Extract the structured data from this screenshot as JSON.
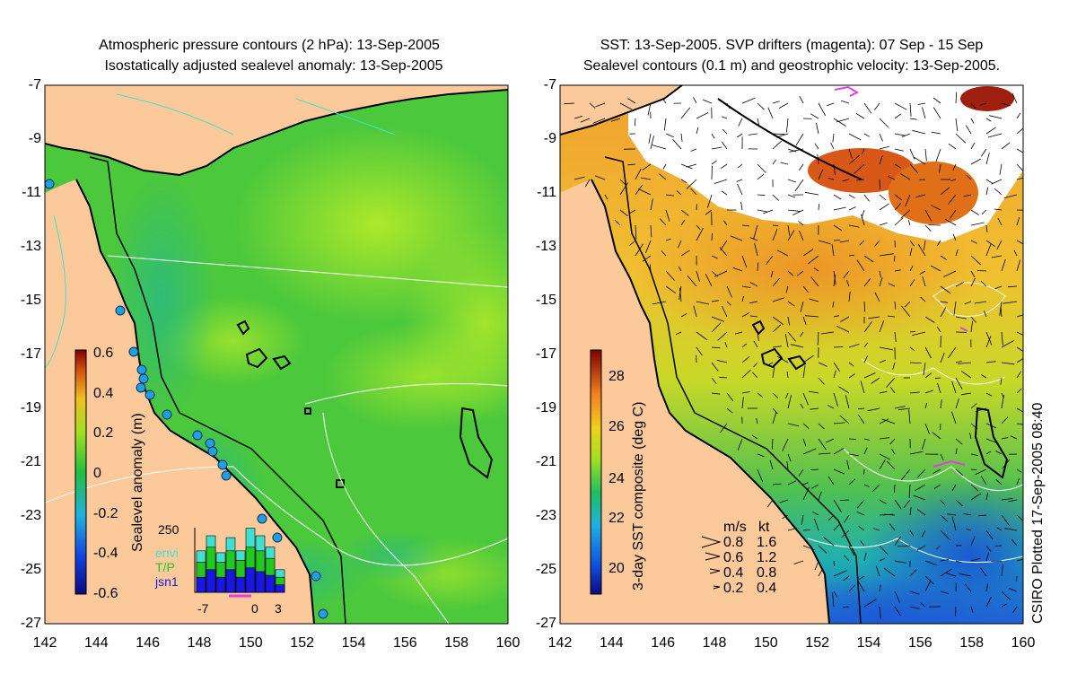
{
  "left_panel": {
    "title_line1": "Atmospheric pressure contours (2 hPa): 13-Sep-2005",
    "title_line2": "Isostatically adjusted sealevel anomaly: 13-Sep-2005",
    "colorbar_label": "Sealevel anomaly (m)",
    "colorbar_ticks": [
      "0.6",
      "0.4",
      "0.2",
      "0",
      "-0.2",
      "-0.4",
      "-0.6"
    ],
    "inset": {
      "ytick": "250",
      "xticks": [
        "-7",
        "0",
        "3"
      ],
      "legend": [
        {
          "label": "envi",
          "color": "#40e0d0"
        },
        {
          "label": "T/P",
          "color": "#22c822"
        },
        {
          "label": "jsn1",
          "color": "#1818e0"
        }
      ],
      "bars_total": [
        110,
        150,
        105,
        145,
        110,
        170,
        150,
        120,
        60
      ],
      "bars_green": [
        80,
        120,
        80,
        110,
        85,
        120,
        110,
        90,
        40
      ],
      "bars_blue": [
        40,
        60,
        40,
        60,
        40,
        65,
        55,
        45,
        20
      ]
    }
  },
  "right_panel": {
    "title_line1": "SST: 13-Sep-2005. SVP drifters (magenta): 07 Sep - 15 Sep",
    "title_line2": "Sealevel contours (0.1 m) and geostrophic velocity: 13-Sep-2005.",
    "colorbar_label": "3-day SST composite (deg C)",
    "colorbar_ticks": [
      "28",
      "26",
      "24",
      "22",
      "20"
    ],
    "velocity_legend": {
      "header_ms": "m/s",
      "header_kt": "kt",
      "rows": [
        {
          "ms": "0.8",
          "kt": "1.6"
        },
        {
          "ms": "0.6",
          "kt": "1.2"
        },
        {
          "ms": "0.4",
          "kt": "0.8"
        },
        {
          "ms": "0.2",
          "kt": "0.4"
        }
      ]
    },
    "credit": "CSIRO Plotted 17-Sep-2005 08:40"
  },
  "axes": {
    "lat_ticks": [
      "-7",
      "-9",
      "-11",
      "-13",
      "-15",
      "-17",
      "-19",
      "-21",
      "-23",
      "-25",
      "-27"
    ],
    "lon_ticks": [
      "142",
      "144",
      "146",
      "148",
      "150",
      "152",
      "154",
      "156",
      "158",
      "160"
    ]
  },
  "colors": {
    "land": "#fbc99a",
    "sea_green": "#4cc83c",
    "sea_lime": "#9ce02a",
    "sea_teal": "#2cbc8c",
    "sst_orange": "#f0a02a",
    "sst_yellow": "#e8d830",
    "sst_blue": "#2a6ae0",
    "coast": "#000000",
    "drifter": "#e040e0"
  }
}
